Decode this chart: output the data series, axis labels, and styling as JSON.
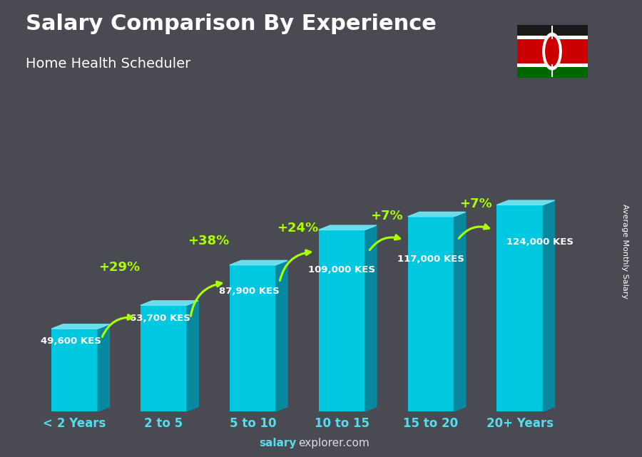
{
  "title": "Salary Comparison By Experience",
  "subtitle": "Home Health Scheduler",
  "categories": [
    "< 2 Years",
    "2 to 5",
    "5 to 10",
    "10 to 15",
    "15 to 20",
    "20+ Years"
  ],
  "values": [
    49600,
    63700,
    87900,
    109000,
    117000,
    124000
  ],
  "labels": [
    "49,600 KES",
    "63,700 KES",
    "87,900 KES",
    "109,000 KES",
    "117,000 KES",
    "124,000 KES"
  ],
  "pct_labels": [
    "+29%",
    "+38%",
    "+24%",
    "+7%",
    "+7%"
  ],
  "bar_color_main": "#00c8e0",
  "bar_color_light": "#70e8f8",
  "bar_color_dark": "#0090a8",
  "bg_color": "#4a4a52",
  "title_color": "#ffffff",
  "subtitle_color": "#ffffff",
  "label_color": "#ffffff",
  "pct_color": "#aaff00",
  "tick_color": "#55ddee",
  "footer_salary_color": "#55ddee",
  "footer_rest_color": "#dddddd",
  "ylabel_color": "#ffffff",
  "figsize": [
    9.0,
    6.41
  ],
  "dpi": 100,
  "ylabel": "Average Monthly Salary",
  "footer_salary": "salary",
  "footer_rest": "explorer.com"
}
